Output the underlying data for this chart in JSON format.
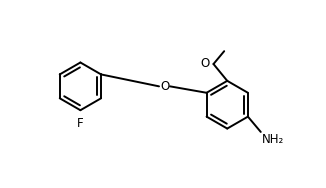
{
  "bg_color": "#ffffff",
  "line_color": "#000000",
  "line_width": 1.4,
  "font_size": 8.5,
  "figsize": [
    3.26,
    1.88
  ],
  "dpi": 100,
  "xlim": [
    0,
    10
  ],
  "ylim": [
    0,
    6.1
  ]
}
